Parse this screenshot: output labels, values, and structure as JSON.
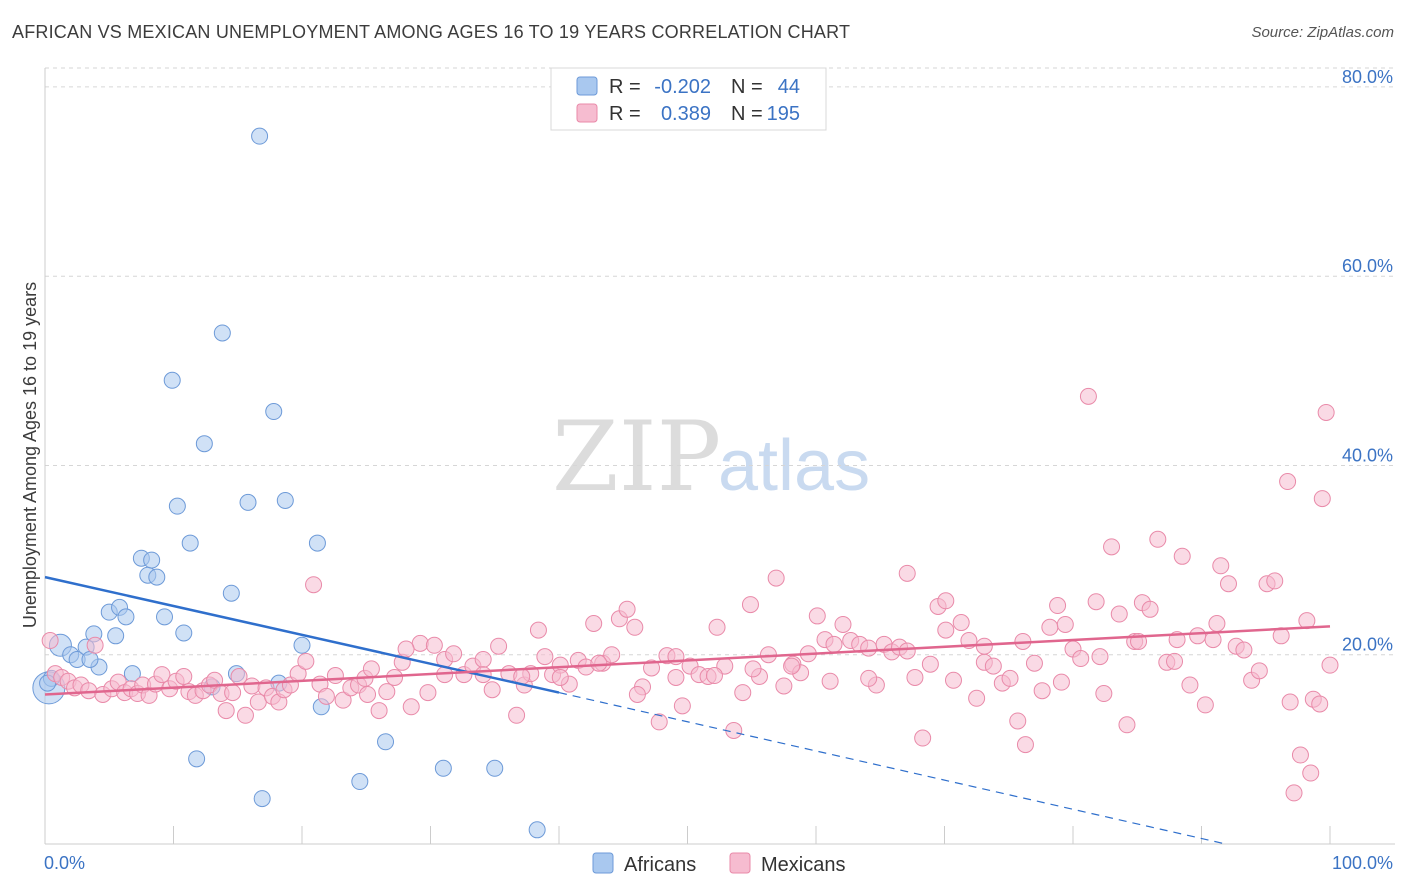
{
  "title": "AFRICAN VS MEXICAN UNEMPLOYMENT AMONG AGES 16 TO 19 YEARS CORRELATION CHART",
  "source": "Source: ZipAtlas.com",
  "watermark": {
    "zip": "ZIP",
    "atlas": "atlas"
  },
  "colors": {
    "africans_fill": "#a9c8ef",
    "africans_stroke": "#6d9ad8",
    "africans_line": "#2f6fcc",
    "mexicans_fill": "#f6bcd0",
    "mexicans_stroke": "#e98aa9",
    "mexicans_line": "#e0668e",
    "tick_label": "#3b73c4",
    "grid": "#d6d6d6"
  },
  "legend_top": {
    "rows": [
      {
        "series": "Africans",
        "r_label": "R =",
        "r_value": "-0.202",
        "n_label": "N =",
        "n_value": "44"
      },
      {
        "series": "Mexicans",
        "r_label": "R =",
        "r_value": "0.389",
        "n_label": "N =",
        "n_value": "195"
      }
    ]
  },
  "legend_bottom": [
    "Africans",
    "Mexicans"
  ],
  "chart_data": {
    "type": "scatter",
    "title": "AFRICAN VS MEXICAN UNEMPLOYMENT AMONG AGES 16 TO 19 YEARS CORRELATION CHART",
    "xlabel": "",
    "ylabel": "Unemployment Among Ages 16 to 19 years",
    "xlim": [
      0,
      100
    ],
    "ylim": [
      0,
      82
    ],
    "x_tick_labels": [
      "0.0%",
      "100.0%"
    ],
    "y_ticks": [
      20,
      40,
      60,
      80
    ],
    "y_tick_labels": [
      "20.0%",
      "40.0%",
      "60.0%",
      "80.0%"
    ],
    "grid": true,
    "legend_position": "top-center",
    "series": [
      {
        "name": "Africans",
        "r": -0.202,
        "n": 44,
        "trend": {
          "x0": 0,
          "y0": 28.2,
          "x1": 40,
          "y1": 16.0,
          "dashed_to_x": 100,
          "dashed_to_y": -2.5
        },
        "points": [
          [
            0.3,
            16.5
          ],
          [
            0.5,
            17.5
          ],
          [
            1.2,
            21
          ],
          [
            2,
            20
          ],
          [
            2.5,
            19.5
          ],
          [
            3.2,
            20.8
          ],
          [
            3.8,
            22.2
          ],
          [
            4.2,
            18.7
          ],
          [
            5,
            24.5
          ],
          [
            5.5,
            22
          ],
          [
            5.8,
            25
          ],
          [
            6.3,
            24
          ],
          [
            6.8,
            18
          ],
          [
            7.5,
            30.2
          ],
          [
            8,
            28.4
          ],
          [
            8.3,
            30
          ],
          [
            8.7,
            28.2
          ],
          [
            9.3,
            24
          ],
          [
            9.9,
            49
          ],
          [
            10.3,
            35.7
          ],
          [
            10.8,
            22.3
          ],
          [
            11.3,
            31.8
          ],
          [
            11.8,
            9
          ],
          [
            12.4,
            42.3
          ],
          [
            13,
            16.6
          ],
          [
            13.8,
            54
          ],
          [
            14.5,
            26.5
          ],
          [
            14.9,
            18
          ],
          [
            15.8,
            36.1
          ],
          [
            16.7,
            74.8
          ],
          [
            16.9,
            4.8
          ],
          [
            17.8,
            45.7
          ],
          [
            18.2,
            17
          ],
          [
            18.7,
            36.3
          ],
          [
            20,
            21
          ],
          [
            21.2,
            31.8
          ],
          [
            21.5,
            14.5
          ],
          [
            24.5,
            6.6
          ],
          [
            26.5,
            10.8
          ],
          [
            31,
            8
          ],
          [
            35,
            8
          ],
          [
            38.3,
            1.5
          ],
          [
            0.2,
            17
          ],
          [
            3.5,
            19.5
          ]
        ]
      },
      {
        "name": "Mexicans",
        "r": 0.389,
        "n": 195,
        "trend": {
          "x0": 0,
          "y0": 15.8,
          "x1": 100,
          "y1": 23.0
        },
        "points": [
          [
            0.4,
            21.5
          ],
          [
            0.8,
            18
          ],
          [
            1.3,
            17.6
          ],
          [
            1.8,
            17.2
          ],
          [
            2.3,
            16.5
          ],
          [
            2.8,
            16.8
          ],
          [
            3.4,
            16.2
          ],
          [
            3.9,
            21
          ],
          [
            4.5,
            15.8
          ],
          [
            5.2,
            16.4
          ],
          [
            5.7,
            17.1
          ],
          [
            6.2,
            16
          ],
          [
            6.7,
            16.4
          ],
          [
            7.2,
            15.9
          ],
          [
            7.6,
            16.8
          ],
          [
            8.1,
            15.7
          ],
          [
            8.6,
            16.9
          ],
          [
            9.1,
            17.9
          ],
          [
            9.7,
            16.4
          ],
          [
            10.2,
            17.2
          ],
          [
            10.8,
            17.7
          ],
          [
            11.2,
            16.1
          ],
          [
            11.7,
            15.7
          ],
          [
            12.3,
            16.2
          ],
          [
            12.8,
            16.8
          ],
          [
            13.2,
            17.3
          ],
          [
            13.7,
            15.9
          ],
          [
            14.1,
            14.1
          ],
          [
            14.6,
            16
          ],
          [
            15.1,
            17.7
          ],
          [
            15.6,
            13.6
          ],
          [
            16.1,
            16.7
          ],
          [
            16.6,
            15
          ],
          [
            17.2,
            16.5
          ],
          [
            17.7,
            15.6
          ],
          [
            18.2,
            15
          ],
          [
            18.6,
            16.3
          ],
          [
            19.1,
            16.8
          ],
          [
            19.7,
            18
          ],
          [
            20.3,
            19.3
          ],
          [
            20.9,
            27.4
          ],
          [
            21.4,
            16.9
          ],
          [
            21.9,
            15.6
          ],
          [
            22.6,
            17.8
          ],
          [
            23.2,
            15.2
          ],
          [
            23.8,
            16.5
          ],
          [
            24.4,
            16.8
          ],
          [
            24.9,
            17.5
          ],
          [
            25.4,
            18.5
          ],
          [
            26,
            14.1
          ],
          [
            26.6,
            16.1
          ],
          [
            27.2,
            17.6
          ],
          [
            27.8,
            19.2
          ],
          [
            28.5,
            14.5
          ],
          [
            29.2,
            21.2
          ],
          [
            29.8,
            16
          ],
          [
            30.3,
            21
          ],
          [
            31.1,
            19.5
          ],
          [
            31.8,
            20.1
          ],
          [
            32.6,
            17.9
          ],
          [
            33.3,
            18.8
          ],
          [
            34.1,
            19.5
          ],
          [
            34.8,
            16.3
          ],
          [
            35.3,
            20.9
          ],
          [
            36.1,
            18
          ],
          [
            36.7,
            13.6
          ],
          [
            37.3,
            16.8
          ],
          [
            37.8,
            18
          ],
          [
            38.4,
            22.6
          ],
          [
            38.9,
            19.8
          ],
          [
            39.5,
            17.9
          ],
          [
            40.1,
            18.9
          ],
          [
            40.8,
            16.9
          ],
          [
            41.5,
            19.4
          ],
          [
            42.1,
            18.7
          ],
          [
            42.7,
            23.3
          ],
          [
            43.4,
            19.1
          ],
          [
            44.1,
            20
          ],
          [
            44.7,
            23.8
          ],
          [
            45.3,
            24.8
          ],
          [
            45.9,
            22.9
          ],
          [
            46.5,
            16.6
          ],
          [
            47.2,
            18.6
          ],
          [
            47.8,
            12.9
          ],
          [
            48.4,
            19.9
          ],
          [
            49.1,
            17.6
          ],
          [
            49.6,
            14.6
          ],
          [
            50.2,
            18.8
          ],
          [
            50.9,
            17.9
          ],
          [
            51.6,
            17.7
          ],
          [
            52.3,
            22.9
          ],
          [
            52.9,
            18.8
          ],
          [
            53.6,
            12
          ],
          [
            54.3,
            16
          ],
          [
            54.9,
            25.3
          ],
          [
            55.6,
            17.7
          ],
          [
            56.3,
            20
          ],
          [
            56.9,
            28.1
          ],
          [
            57.5,
            16.7
          ],
          [
            58.2,
            19
          ],
          [
            58.8,
            18.1
          ],
          [
            59.4,
            20.1
          ],
          [
            60.1,
            24.1
          ],
          [
            60.7,
            21.6
          ],
          [
            61.4,
            21.1
          ],
          [
            62.1,
            23.2
          ],
          [
            62.7,
            21.5
          ],
          [
            63.4,
            21.1
          ],
          [
            64.1,
            20.7
          ],
          [
            64.7,
            16.8
          ],
          [
            65.3,
            21.1
          ],
          [
            65.9,
            20.3
          ],
          [
            66.5,
            20.8
          ],
          [
            67.1,
            28.6
          ],
          [
            67.7,
            17.6
          ],
          [
            68.3,
            11.2
          ],
          [
            68.9,
            19
          ],
          [
            69.5,
            25.1
          ],
          [
            70.1,
            25.7
          ],
          [
            70.7,
            17.3
          ],
          [
            71.3,
            23.4
          ],
          [
            71.9,
            21.5
          ],
          [
            72.5,
            15.4
          ],
          [
            73.1,
            19.2
          ],
          [
            73.8,
            18.8
          ],
          [
            74.5,
            17
          ],
          [
            75.1,
            17.5
          ],
          [
            75.7,
            13
          ],
          [
            76.3,
            10.5
          ],
          [
            77,
            19.1
          ],
          [
            77.6,
            16.2
          ],
          [
            78.2,
            22.9
          ],
          [
            78.8,
            25.2
          ],
          [
            79.4,
            23.2
          ],
          [
            80,
            20.6
          ],
          [
            80.6,
            19.6
          ],
          [
            81.2,
            47.3
          ],
          [
            81.8,
            25.6
          ],
          [
            82.4,
            15.9
          ],
          [
            83,
            31.4
          ],
          [
            83.6,
            24.3
          ],
          [
            84.2,
            12.6
          ],
          [
            84.8,
            21.4
          ],
          [
            85.4,
            25.5
          ],
          [
            86,
            24.8
          ],
          [
            86.6,
            32.2
          ],
          [
            87.3,
            19.2
          ],
          [
            87.9,
            19.3
          ],
          [
            88.5,
            30.4
          ],
          [
            89.1,
            16.8
          ],
          [
            89.7,
            22
          ],
          [
            90.3,
            14.7
          ],
          [
            90.9,
            21.6
          ],
          [
            91.5,
            29.4
          ],
          [
            92.1,
            27.5
          ],
          [
            92.7,
            20.9
          ],
          [
            93.3,
            20.5
          ],
          [
            93.9,
            17.3
          ],
          [
            94.5,
            18.3
          ],
          [
            95.1,
            27.5
          ],
          [
            95.7,
            27.8
          ],
          [
            96.2,
            22
          ],
          [
            96.7,
            38.3
          ],
          [
            97.2,
            5.4
          ],
          [
            97.7,
            9.4
          ],
          [
            98.2,
            23.6
          ],
          [
            98.7,
            15.3
          ],
          [
            99.2,
            14.8
          ],
          [
            99.7,
            45.6
          ],
          [
            96.9,
            15
          ],
          [
            98.5,
            7.5
          ],
          [
            99.4,
            36.5
          ],
          [
            100,
            18.9
          ],
          [
            91.2,
            23.3
          ],
          [
            88.1,
            21.6
          ],
          [
            85.1,
            21.4
          ],
          [
            82.1,
            19.8
          ],
          [
            79.1,
            17.1
          ],
          [
            76.1,
            21.4
          ],
          [
            73.1,
            20.9
          ],
          [
            70.1,
            22.6
          ],
          [
            67.1,
            20.4
          ],
          [
            64.1,
            17.5
          ],
          [
            61.1,
            17.2
          ],
          [
            58.1,
            18.8
          ],
          [
            55.1,
            18.5
          ],
          [
            52.1,
            17.8
          ],
          [
            49.1,
            19.8
          ],
          [
            46.1,
            15.8
          ],
          [
            43.1,
            19.1
          ],
          [
            40.1,
            17.6
          ],
          [
            37.1,
            17.7
          ],
          [
            34.1,
            17.9
          ],
          [
            31.1,
            17.9
          ],
          [
            28.1,
            20.6
          ],
          [
            25.1,
            15.8
          ]
        ]
      }
    ]
  }
}
